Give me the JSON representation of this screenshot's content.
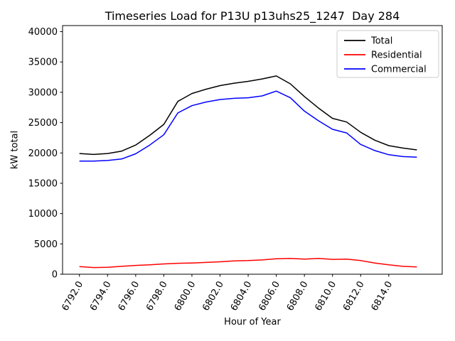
{
  "chart_data": {
    "type": "line",
    "title": "Timeseries Load for P13U p13uhs25_1247  Day 284",
    "xlabel": "Hour of Year",
    "ylabel": "kW total",
    "xlim": [
      6790.8,
      6817.8
    ],
    "ylim": [
      0,
      41000
    ],
    "grid": false,
    "xticks": [
      6792,
      6794,
      6796,
      6798,
      6800,
      6802,
      6804,
      6806,
      6808,
      6810,
      6812,
      6814
    ],
    "xtick_labels": [
      "6792.0",
      "6794.0",
      "6796.0",
      "6798.0",
      "6800.0",
      "6802.0",
      "6804.0",
      "6806.0",
      "6808.0",
      "6810.0",
      "6812.0",
      "6814.0"
    ],
    "xtick_rotation": 60,
    "yticks": [
      0,
      5000,
      10000,
      15000,
      20000,
      25000,
      30000,
      35000,
      40000
    ],
    "ytick_labels": [
      "0",
      "5000",
      "10000",
      "15000",
      "20000",
      "25000",
      "30000",
      "35000",
      "40000"
    ],
    "x": [
      6792,
      6793,
      6794,
      6795,
      6796,
      6797,
      6798,
      6799,
      6800,
      6801,
      6802,
      6803,
      6804,
      6805,
      6806,
      6807,
      6808,
      6809,
      6810,
      6811,
      6812,
      6813,
      6814,
      6815,
      6816
    ],
    "series": [
      {
        "name": "Total",
        "color": "#000000",
        "values": [
          19900,
          19750,
          19900,
          20300,
          21300,
          22900,
          24700,
          28500,
          29800,
          30500,
          31100,
          31500,
          31800,
          32200,
          32700,
          31400,
          29300,
          27400,
          25700,
          25100,
          23400,
          22100,
          21200,
          20800,
          20500
        ]
      },
      {
        "name": "Residential",
        "color": "#ff0000",
        "values": [
          1250,
          1100,
          1150,
          1300,
          1450,
          1550,
          1700,
          1800,
          1850,
          1950,
          2050,
          2200,
          2250,
          2350,
          2550,
          2600,
          2500,
          2600,
          2450,
          2500,
          2250,
          1850,
          1550,
          1300,
          1200
        ]
      },
      {
        "name": "Commercial",
        "color": "#0000ff",
        "values": [
          18650,
          18650,
          18750,
          19000,
          19850,
          21300,
          23000,
          26600,
          27800,
          28400,
          28800,
          29000,
          29100,
          29400,
          30200,
          29100,
          26900,
          25300,
          23900,
          23300,
          21400,
          20400,
          19700,
          19400,
          19300
        ]
      }
    ],
    "legend": {
      "position": "upper right",
      "entries": [
        "Total",
        "Residential",
        "Commercial"
      ],
      "border_color": "#cccccc",
      "background": "#ffffff"
    },
    "axes_color": "#000000"
  }
}
